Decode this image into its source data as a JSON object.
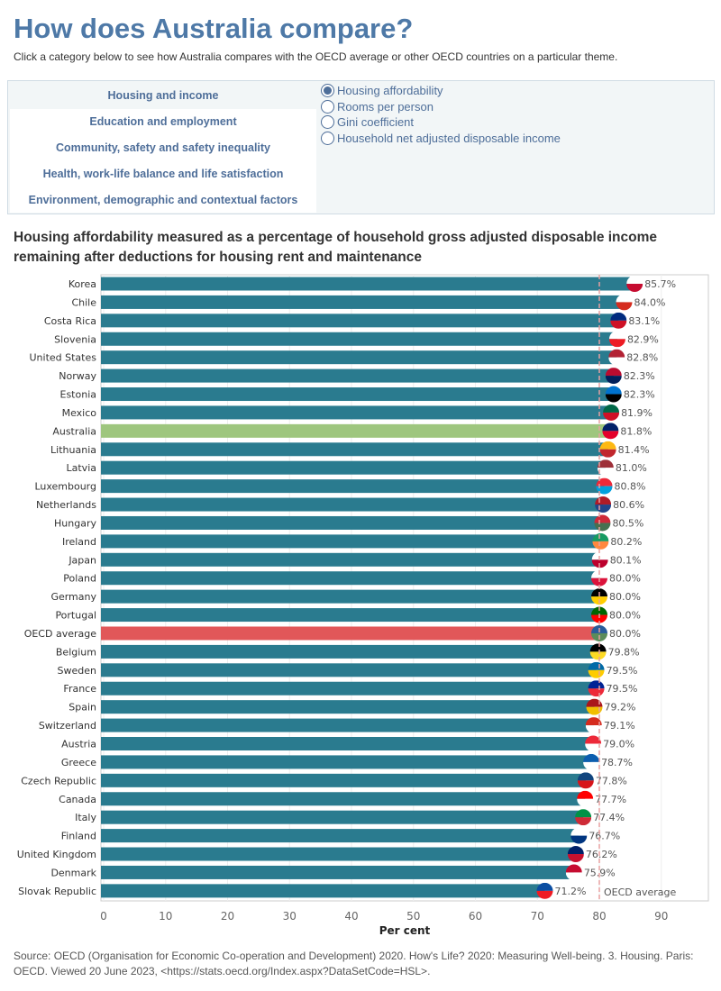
{
  "header": {
    "title": "How does Australia compare?",
    "subtitle": "Click a category below to see how Australia compares with the OECD average or other OECD countries on a particular theme."
  },
  "categories": [
    {
      "label": "Housing and income",
      "selected": true
    },
    {
      "label": "Education and employment"
    },
    {
      "label": "Community, safety and safety inequality"
    },
    {
      "label": "Health, work-life balance and life satisfaction"
    },
    {
      "label": "Environment, demographic and contextual factors"
    }
  ],
  "options": [
    {
      "label": "Housing affordability",
      "selected": true
    },
    {
      "label": "Rooms per person"
    },
    {
      "label": "Gini coefficient"
    },
    {
      "label": "Household net adjusted disposable income"
    }
  ],
  "colors": {
    "bar": "#2a7b8f",
    "australia": "#9ec67e",
    "oecd": "#e15759",
    "title": "#4e79a7"
  },
  "chart_data": {
    "type": "bar",
    "orientation": "horizontal",
    "title": "Housing affordability measured as a percentage of household gross adjusted disposable income remaining after deductions for housing rent and maintenance",
    "xlabel": "Per cent",
    "xlim": [
      0,
      97
    ],
    "xticks": [
      0,
      10,
      20,
      30,
      40,
      50,
      60,
      70,
      80,
      90
    ],
    "reference_line": {
      "value": 80.0,
      "label": "OECD average"
    },
    "categories": [
      "Korea",
      "Chile",
      "Costa Rica",
      "Slovenia",
      "United States",
      "Norway",
      "Estonia",
      "Mexico",
      "Australia",
      "Lithuania",
      "Latvia",
      "Luxembourg",
      "Netherlands",
      "Hungary",
      "Ireland",
      "Japan",
      "Poland",
      "Germany",
      "Portugal",
      "OECD average",
      "Belgium",
      "Sweden",
      "France",
      "Spain",
      "Switzerland",
      "Austria",
      "Greece",
      "Czech Republic",
      "Canada",
      "Italy",
      "Finland",
      "United Kingdom",
      "Denmark",
      "Slovak Republic"
    ],
    "values": [
      85.7,
      84.0,
      83.1,
      82.9,
      82.8,
      82.3,
      82.3,
      81.9,
      81.8,
      81.4,
      81.0,
      80.8,
      80.6,
      80.5,
      80.2,
      80.1,
      80.0,
      80.0,
      80.0,
      80.0,
      79.8,
      79.5,
      79.5,
      79.2,
      79.1,
      79.0,
      78.7,
      77.8,
      77.7,
      77.4,
      76.7,
      76.2,
      75.9,
      71.2
    ],
    "data_labels": [
      "85.7%",
      "84.0%",
      "83.1%",
      "82.9%",
      "82.8%",
      "82.3%",
      "82.3%",
      "81.9%",
      "81.8%",
      "81.4%",
      "81.0%",
      "80.8%",
      "80.6%",
      "80.5%",
      "80.2%",
      "80.1%",
      "80.0%",
      "80.0%",
      "80.0%",
      "80.0%",
      "79.8%",
      "79.5%",
      "79.5%",
      "79.2%",
      "79.1%",
      "79.0%",
      "78.7%",
      "77.8%",
      "77.7%",
      "77.4%",
      "76.7%",
      "76.2%",
      "75.9%",
      "71.2%"
    ]
  },
  "flags": [
    [
      "#fff",
      "#c60c30"
    ],
    [
      "#fff",
      "#d52b1e"
    ],
    [
      "#002b7f",
      "#ce1126"
    ],
    [
      "#fff",
      "#ed1c24"
    ],
    [
      "#b22234",
      "#fff"
    ],
    [
      "#ba0c2f",
      "#00205b"
    ],
    [
      "#0072ce",
      "#000"
    ],
    [
      "#006847",
      "#ce1126"
    ],
    [
      "#012169",
      "#e4002b"
    ],
    [
      "#fdb913",
      "#c1272d"
    ],
    [
      "#9e3039",
      "#fff"
    ],
    [
      "#ed2939",
      "#00a1de"
    ],
    [
      "#ae1c28",
      "#21468b"
    ],
    [
      "#ce2939",
      "#477050"
    ],
    [
      "#169b62",
      "#ff883e"
    ],
    [
      "#fff",
      "#bc002d"
    ],
    [
      "#fff",
      "#dc143c"
    ],
    [
      "#000",
      "#ffce00"
    ],
    [
      "#006600",
      "#ff0000"
    ],
    [
      "#2a5c9a",
      "#5b8c5a"
    ],
    [
      "#000",
      "#fdda24"
    ],
    [
      "#006aa7",
      "#fecc00"
    ],
    [
      "#002395",
      "#ed2939"
    ],
    [
      "#aa151b",
      "#f1bf00"
    ],
    [
      "#d52b1e",
      "#fff"
    ],
    [
      "#ed2939",
      "#fff"
    ],
    [
      "#0d5eaf",
      "#fff"
    ],
    [
      "#11457e",
      "#d7141a"
    ],
    [
      "#ff0000",
      "#fff"
    ],
    [
      "#009246",
      "#ce2b37"
    ],
    [
      "#fff",
      "#003580"
    ],
    [
      "#012169",
      "#c8102e"
    ],
    [
      "#c60c30",
      "#fff"
    ],
    [
      "#0b4ea2",
      "#ee1c25"
    ]
  ],
  "source": "Source: OECD (Organisation for Economic Co-operation and Development) 2020. How's Life? 2020: Measuring Well-being. 3. Housing. Paris: OECD. Viewed 20 June 2023, <https://stats.oecd.org/Index.aspx?DataSetCode=HSL>."
}
